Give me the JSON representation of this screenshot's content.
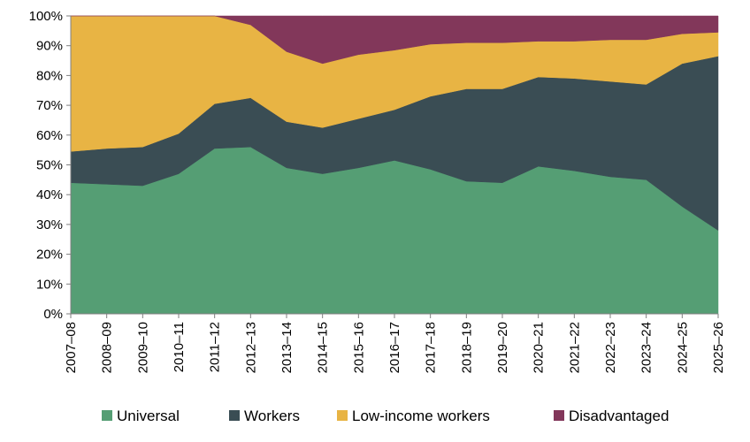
{
  "chart_data": {
    "type": "area",
    "stacked": true,
    "categories": [
      "2007–08",
      "2008–09",
      "2009–10",
      "2010–11",
      "2011–12",
      "2012–13",
      "2013–14",
      "2014–15",
      "2015–16",
      "2016–17",
      "2017–18",
      "2018–19",
      "2019–20",
      "2020–21",
      "2021–22",
      "2022–23",
      "2023–24",
      "2024–25",
      "2025–26"
    ],
    "series": [
      {
        "name": "Universal",
        "color": "#559e74",
        "values": [
          44,
          43.5,
          43,
          47,
          55.5,
          56,
          49,
          47,
          49,
          51.5,
          48.5,
          44.5,
          44,
          49.5,
          48,
          46,
          45,
          36,
          28
        ]
      },
      {
        "name": "Workers",
        "color": "#3a4d54",
        "values": [
          10.5,
          12,
          13,
          13.5,
          15,
          16.5,
          15.5,
          15.5,
          16.5,
          17,
          24.5,
          31,
          31.5,
          30,
          31,
          32,
          32,
          48,
          58.5
        ]
      },
      {
        "name": "Low-income workers",
        "color": "#e8b444",
        "values": [
          45.5,
          44.5,
          44,
          39.5,
          29.5,
          24.5,
          23.5,
          21.5,
          21.5,
          20,
          17.5,
          15.5,
          15.5,
          12,
          12.5,
          14,
          15,
          10,
          8
        ]
      },
      {
        "name": "Disadvantaged",
        "color": "#82375a",
        "values": [
          0,
          0,
          0,
          0,
          0,
          3,
          12,
          16,
          13,
          11.5,
          9.5,
          9,
          9,
          8.5,
          8.5,
          8,
          8,
          6,
          5.5
        ]
      }
    ],
    "y_ticks": [
      "0%",
      "10%",
      "20%",
      "30%",
      "40%",
      "50%",
      "60%",
      "70%",
      "80%",
      "90%",
      "100%"
    ],
    "ylim": [
      0,
      100
    ],
    "grid": false,
    "legend_position": "bottom"
  }
}
